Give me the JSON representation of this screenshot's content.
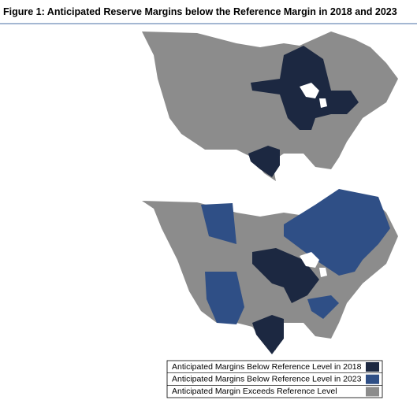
{
  "title": "Figure 1: Anticipated Reserve Margins below the Reference Margin in 2018 and 2023",
  "legend": [
    {
      "label": "Anticipated Margins Below Reference Level in 2018",
      "color": "#1c2841"
    },
    {
      "label": "Anticipated Margins Below Reference Level in 2023",
      "color": "#2f4f86"
    },
    {
      "label": "Anticipated Margin Exceeds Reference Level",
      "color": "#8c8c8c"
    }
  ]
}
